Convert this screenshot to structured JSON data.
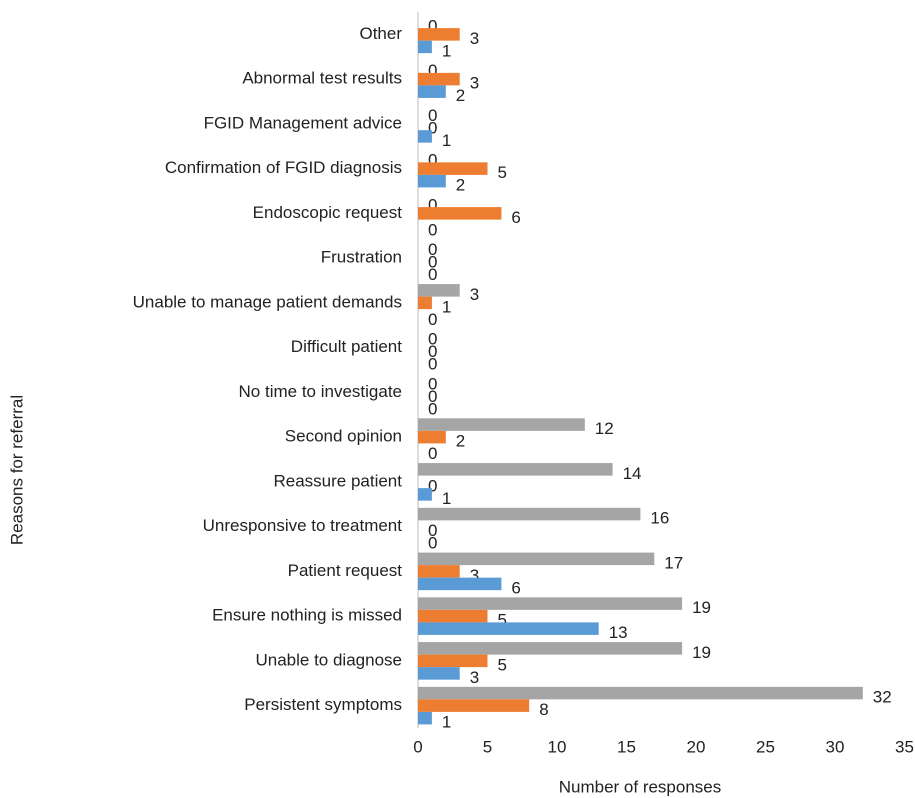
{
  "chart_data": {
    "type": "hbar",
    "xlabel": "Number of responses",
    "ylabel": "Reasons for referral",
    "categories": [
      "Persistent symptoms",
      "Unable to diagnose",
      "Ensure nothing is missed",
      "Patient request",
      "Unresponsive to treatment",
      "Reassure patient",
      "Second opinion",
      "No time to investigate",
      "Difficult patient",
      "Unable to manage patient demands",
      "Frustration",
      "Endoscopic request",
      "Confirmation of FGID diagnosis",
      "FGID Management advice",
      "Abnormal test results",
      "Other"
    ],
    "series": [
      {
        "color": "#a5a5a5",
        "values": [
          32,
          19,
          19,
          17,
          16,
          14,
          12,
          0,
          0,
          3,
          0,
          0,
          0,
          0,
          0,
          0
        ]
      },
      {
        "color": "#ed7d31",
        "values": [
          8,
          5,
          5,
          3,
          0,
          0,
          2,
          0,
          0,
          1,
          0,
          6,
          5,
          0,
          3,
          3
        ]
      },
      {
        "color": "#5b9bd5",
        "values": [
          1,
          3,
          13,
          6,
          0,
          1,
          0,
          0,
          0,
          0,
          0,
          0,
          2,
          1,
          2,
          1
        ]
      }
    ],
    "xlim": [
      0,
      35
    ],
    "xticks": [
      0,
      5,
      10,
      15,
      20,
      25,
      30,
      35
    ],
    "grid": false
  }
}
